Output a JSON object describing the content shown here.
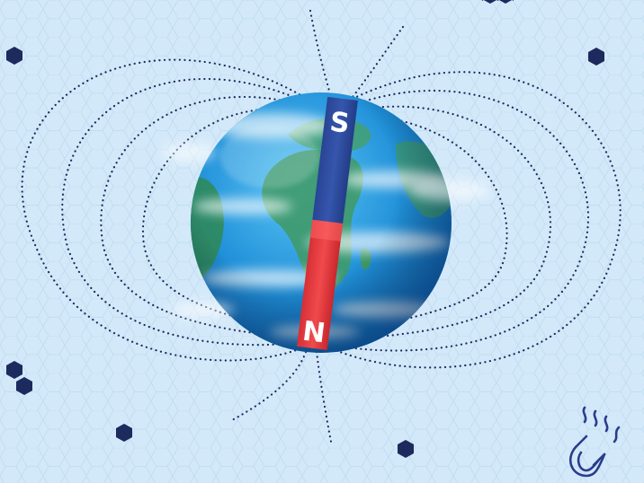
{
  "colors": {
    "background": "#d3e9f9",
    "hex_pattern": "#c2ddf1",
    "dots": "#1d2a5e",
    "south_pole": "#2c4a9c",
    "north_pole": "#e23a3e",
    "ocean": "#1f8fd8",
    "land": "#3f9a6a",
    "icon": "#2a3d8c"
  },
  "magnet": {
    "top_label": "S",
    "bottom_label": "N"
  },
  "decor": {
    "corner_icon": "magnet-icon",
    "hexagon_count": 8
  }
}
